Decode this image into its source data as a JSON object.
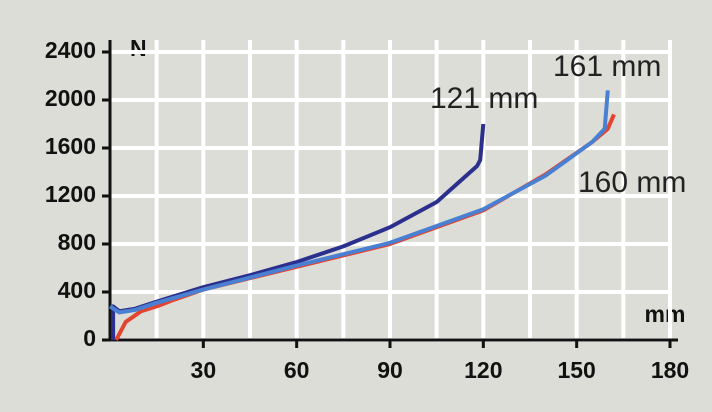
{
  "chart_data": {
    "type": "line",
    "x_label": "mm",
    "y_label": "N",
    "xlim": [
      0,
      180
    ],
    "ylim": [
      0,
      2400
    ],
    "xticks": [
      30,
      60,
      90,
      120,
      150,
      180
    ],
    "yticks": [
      0,
      400,
      800,
      1200,
      1600,
      2000,
      2400
    ],
    "xgrid": [
      15,
      30,
      45,
      60,
      75,
      90,
      105,
      120,
      135,
      150,
      165,
      180
    ],
    "grid": true,
    "series": [
      {
        "name": "121 mm",
        "color": "#2b2f8e",
        "x": [
          1,
          1,
          3,
          8,
          15,
          30,
          45,
          60,
          75,
          90,
          105,
          118,
          119,
          120
        ],
        "values": [
          0,
          280,
          240,
          260,
          320,
          440,
          540,
          650,
          780,
          940,
          1150,
          1450,
          1500,
          1800
        ]
      },
      {
        "name": "160 mm",
        "color": "#e2442f",
        "x": [
          2,
          5,
          10,
          15,
          20,
          30,
          60,
          90,
          120,
          140,
          155,
          160,
          162
        ],
        "values": [
          0,
          150,
          240,
          280,
          330,
          420,
          610,
          800,
          1080,
          1380,
          1650,
          1760,
          1880
        ]
      },
      {
        "name": "161 mm",
        "color": "#4a80d2",
        "x": [
          0,
          3,
          8,
          15,
          30,
          60,
          90,
          120,
          140,
          155,
          159,
          160
        ],
        "values": [
          280,
          230,
          250,
          310,
          420,
          620,
          810,
          1090,
          1370,
          1650,
          1760,
          2080
        ]
      }
    ]
  }
}
